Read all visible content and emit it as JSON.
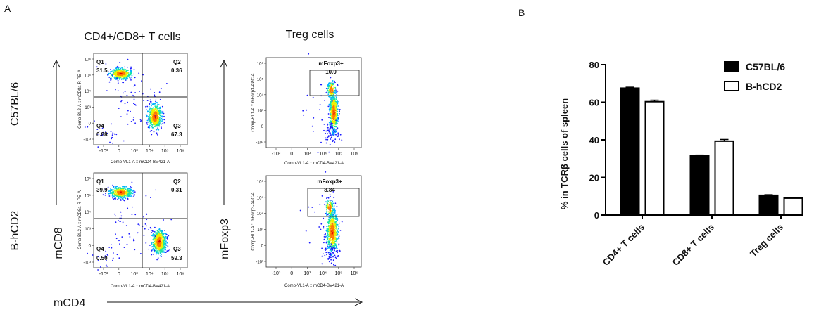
{
  "panel_a": {
    "letter": "A",
    "col_titles": [
      "CD4+/CD8+ T cells",
      "Treg cells"
    ],
    "row_labels": [
      "C57BL/6",
      "B-hCD2"
    ],
    "axis_mcd8": "mCD8",
    "axis_mfoxp3": "mFoxp3",
    "axis_mcd4": "mCD4",
    "plot_xlabel": "Comp-VL1-A :: mCD4-BV421-A",
    "plot_ylabel_cd8": "Comp-BL2-A :: mCD8a-R-PE-A",
    "plot_ylabel_foxp3": "Comp-RL1-A :: mFoxp3-APC-A",
    "x_ticks": [
      "-10³",
      "0",
      "10³",
      "10⁴",
      "10⁵",
      "10⁶"
    ],
    "y_ticks": [
      "10⁶",
      "10⁵",
      "10⁴",
      "10³",
      "0",
      "-10³"
    ],
    "plots": [
      {
        "kind": "quadrant",
        "quadrants": [
          {
            "name": "Q1",
            "value": "31.5"
          },
          {
            "name": "Q2",
            "value": "0.36"
          },
          {
            "name": "Q3",
            "value": "67.3"
          },
          {
            "name": "Q4",
            "value": "0.88"
          }
        ]
      },
      {
        "kind": "gate",
        "gate_name": "mFoxp3+",
        "value": "10.0"
      },
      {
        "kind": "quadrant",
        "quadrants": [
          {
            "name": "Q1",
            "value": "39.9"
          },
          {
            "name": "Q2",
            "value": "0.31"
          },
          {
            "name": "Q3",
            "value": "59.3"
          },
          {
            "name": "Q4",
            "value": "0.50"
          }
        ]
      },
      {
        "kind": "gate",
        "gate_name": "mFoxp3+",
        "value": "8.84"
      }
    ]
  },
  "panel_b": {
    "letter": "B"
  },
  "chart_data": {
    "type": "bar",
    "categories": [
      "CD4+ T cells",
      "CD8+ T cells",
      "Treg cells"
    ],
    "series": [
      {
        "name": "C57BL/6",
        "values": [
          67.5,
          31.5,
          10.5
        ],
        "errors": [
          0.5,
          0.4,
          0.3
        ],
        "fill": "#000000"
      },
      {
        "name": "B-hCD2",
        "values": [
          60.3,
          39.3,
          9.0
        ],
        "errors": [
          0.8,
          0.9,
          0.3
        ],
        "fill": "#ffffff"
      }
    ],
    "xlabel": "",
    "ylabel": "% in TCRβ cells of spleen",
    "ylim": [
      0,
      80
    ],
    "yticks": [
      0,
      20,
      40,
      60,
      80
    ],
    "legend_position": "top-right",
    "grid": false
  }
}
